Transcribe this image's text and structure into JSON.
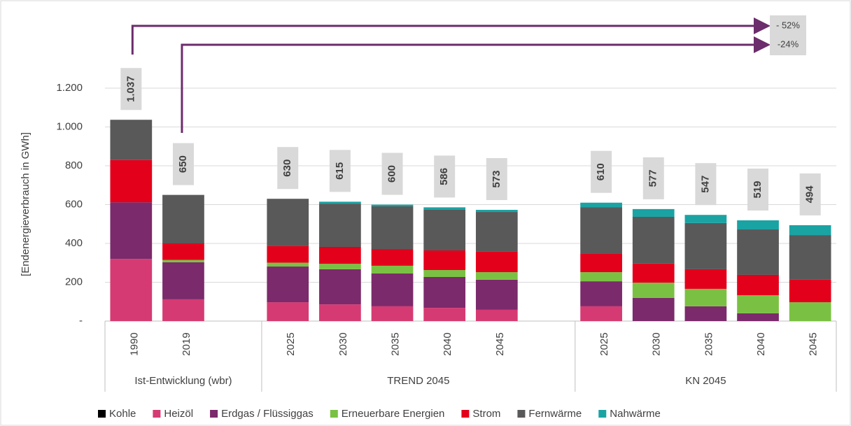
{
  "chart_data": {
    "type": "stacked_bar",
    "ylabel": "[Endenergieverbrauch in GWh]",
    "categories": [
      "1990",
      "2019",
      null,
      "2025",
      "2030",
      "2035",
      "2040",
      "2045",
      null,
      "2025",
      "2030",
      "2035",
      "2040",
      "2045"
    ],
    "groups": [
      "Ist-Entwicklung (wbr)",
      "TREND 2045",
      "KN 2045"
    ],
    "series": [
      {
        "name": "Kohle",
        "color": "#000000",
        "values": [
          0,
          0,
          null,
          0,
          0,
          0,
          0,
          0,
          null,
          0,
          0,
          0,
          0,
          0
        ]
      },
      {
        "name": "Heizöl",
        "color": "#d63a72",
        "values": [
          320,
          112,
          null,
          97,
          86,
          76,
          68,
          58,
          null,
          76,
          0,
          0,
          0,
          0
        ]
      },
      {
        "name": "Erdgas / Flüssiggas",
        "color": "#7b2a6b",
        "values": [
          292,
          191,
          null,
          184,
          181,
          169,
          159,
          155,
          null,
          129,
          119,
          76,
          40,
          0
        ]
      },
      {
        "name": "Erneuerbare Energien",
        "color": "#7ac143",
        "values": [
          0,
          12,
          null,
          20,
          28,
          40,
          36,
          39,
          null,
          47,
          79,
          90,
          93,
          97
        ]
      },
      {
        "name": "Strom",
        "color": "#e3001b",
        "values": [
          218,
          85,
          null,
          86,
          87,
          86,
          101,
          105,
          null,
          94,
          98,
          101,
          105,
          116
        ]
      },
      {
        "name": "Fernwärme",
        "color": "#595959",
        "values": [
          207,
          250,
          null,
          243,
          223,
          220,
          209,
          205,
          null,
          241,
          241,
          238,
          234,
          230
        ]
      },
      {
        "name": "Nahwärme",
        "color": "#1aa3a3",
        "values": [
          0,
          0,
          null,
          0,
          10,
          9,
          13,
          11,
          null,
          23,
          40,
          42,
          47,
          51
        ]
      }
    ],
    "totals": [
      1037,
      650,
      null,
      630,
      615,
      600,
      586,
      573,
      null,
      610,
      577,
      547,
      519,
      494
    ],
    "value_labels": [
      "1.037",
      "650",
      null,
      "630",
      "615",
      "600",
      "586",
      "573",
      null,
      "610",
      "577",
      "547",
      "519",
      "494"
    ],
    "annotations": [
      {
        "text": "- 52%"
      },
      {
        "text": "-24%"
      }
    ],
    "ylim": [
      0,
      1200
    ],
    "yticks": [
      {
        "value": 0,
        "label": "-"
      },
      200,
      400,
      600,
      800,
      {
        "value": 1000,
        "label": "1.000"
      },
      {
        "value": 1200,
        "label": "1.200"
      }
    ],
    "grid": true,
    "legend": "bottom"
  }
}
